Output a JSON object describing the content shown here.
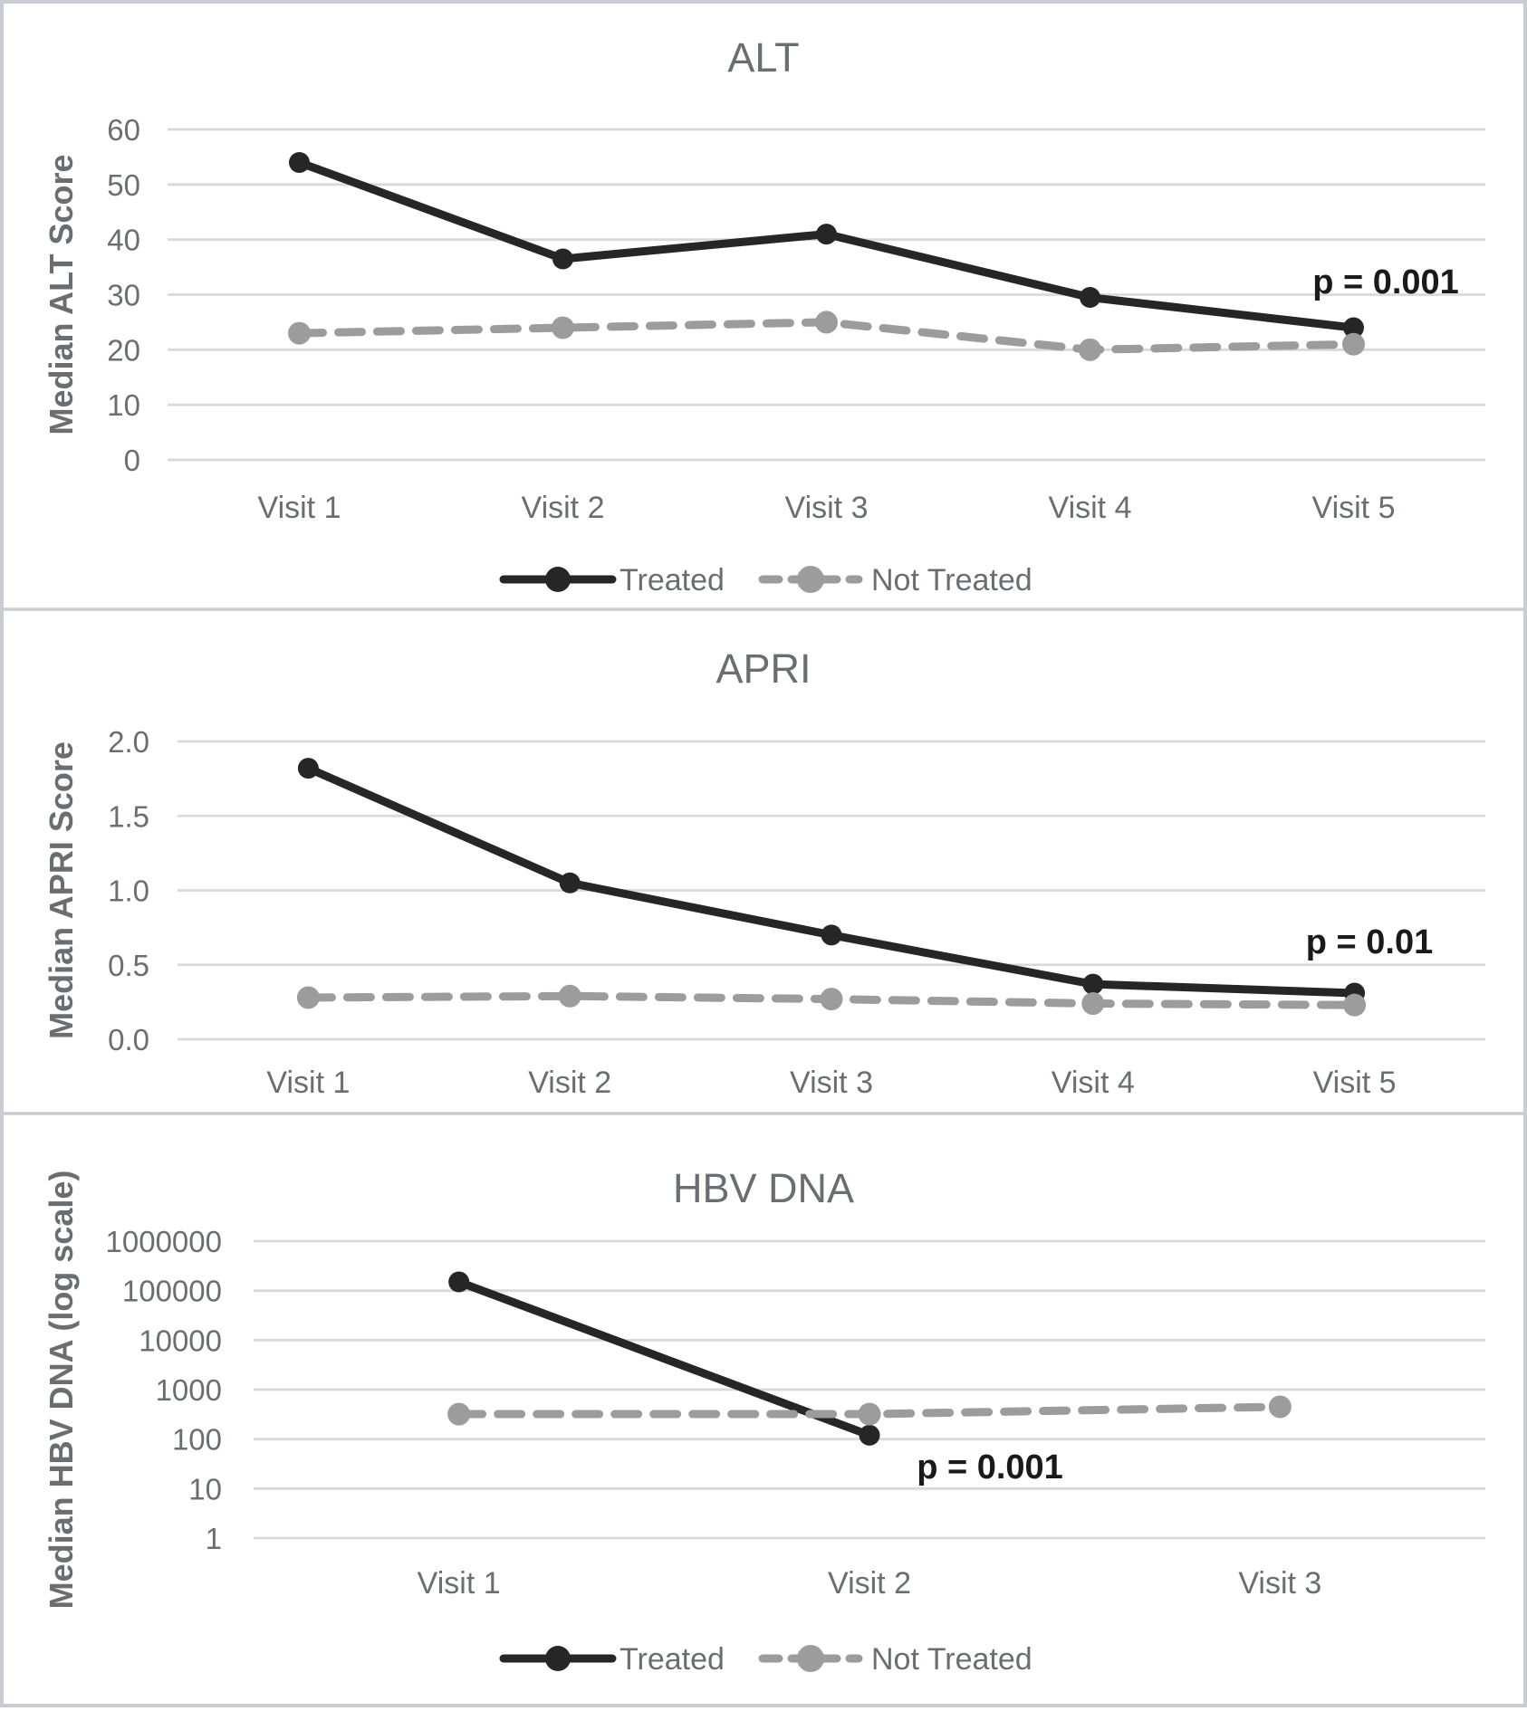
{
  "figure": {
    "legend": {
      "treated_label": "Treated",
      "not_treated_label": "Not Treated"
    },
    "colors": {
      "treated": "#262626",
      "not_treated": "#9c9c9c",
      "gridline": "#d9d9d9",
      "axis_text": "#6b6e71",
      "annotation_text": "#1a1a1a",
      "panel_border": "#c9cdd1",
      "background": "#ffffff"
    }
  },
  "chart_data": [
    {
      "type": "line",
      "title": "ALT",
      "ylabel": "Median ALT Score",
      "xlabel": "",
      "categories": [
        "Visit 1",
        "Visit 2",
        "Visit 3",
        "Visit 4",
        "Visit 5"
      ],
      "series": [
        {
          "name": "Treated",
          "style": "solid",
          "color_key": "treated",
          "values": [
            54,
            36.5,
            41,
            29.5,
            24
          ]
        },
        {
          "name": "Not Treated",
          "style": "dashed",
          "color_key": "not_treated",
          "values": [
            23,
            24,
            25,
            20,
            21
          ]
        }
      ],
      "scale": "linear",
      "ylim": [
        0,
        60
      ],
      "yticks": [
        0,
        10,
        20,
        30,
        40,
        50,
        60
      ],
      "ytick_labels": [
        "0",
        "10",
        "20",
        "30",
        "40",
        "50",
        "60"
      ],
      "grid": true,
      "legend": true,
      "legend_position": "bottom",
      "annotation": "p = 0.001"
    },
    {
      "type": "line",
      "title": "APRI",
      "ylabel": "Median APRI Score",
      "xlabel": "",
      "categories": [
        "Visit 1",
        "Visit 2",
        "Visit 3",
        "Visit 4",
        "Visit 5"
      ],
      "series": [
        {
          "name": "Treated",
          "style": "solid",
          "color_key": "treated",
          "values": [
            1.82,
            1.05,
            0.7,
            0.37,
            0.31
          ]
        },
        {
          "name": "Not Treated",
          "style": "dashed",
          "color_key": "not_treated",
          "values": [
            0.28,
            0.29,
            0.27,
            0.24,
            0.23
          ]
        }
      ],
      "scale": "linear",
      "ylim": [
        0,
        2.0
      ],
      "yticks": [
        0,
        0.5,
        1.0,
        1.5,
        2.0
      ],
      "ytick_labels": [
        "0.0",
        "0.5",
        "1.0",
        "1.5",
        "2.0"
      ],
      "grid": true,
      "legend": false,
      "legend_position": "none",
      "annotation": "p = 0.01"
    },
    {
      "type": "line",
      "title": "HBV DNA",
      "ylabel": "Median HBV DNA (log scale)",
      "xlabel": "",
      "categories": [
        "Visit 1",
        "Visit 2",
        "Visit 3"
      ],
      "series": [
        {
          "name": "Treated",
          "style": "solid",
          "color_key": "treated",
          "values": [
            150000,
            120,
            null
          ]
        },
        {
          "name": "Not Treated",
          "style": "dashed",
          "color_key": "not_treated",
          "values": [
            320,
            320,
            450
          ]
        }
      ],
      "scale": "log",
      "ylim": [
        1,
        1000000
      ],
      "yticks": [
        1,
        10,
        100,
        1000,
        10000,
        100000,
        1000000
      ],
      "ytick_labels": [
        "1",
        "10",
        "100",
        "1000",
        "10000",
        "100000",
        "1000000"
      ],
      "grid": true,
      "legend": true,
      "legend_position": "bottom",
      "annotation": "p = 0.001"
    }
  ]
}
